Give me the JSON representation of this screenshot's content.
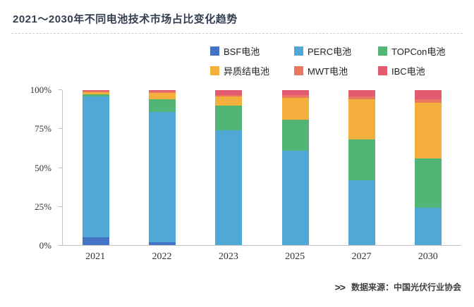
{
  "title": "2021～2030年不同电池技术市场占比变化趋势",
  "footer": {
    "marker": ">>",
    "text": "数据来源：中国光伏行业协会"
  },
  "chart_data": {
    "type": "bar",
    "stacked": true,
    "title": "2021～2030年不同电池技术市场占比变化趋势",
    "categories": [
      "2021",
      "2022",
      "2023",
      "2025",
      "2027",
      "2030"
    ],
    "series": [
      {
        "name": "BSF电池",
        "color": "#4472C4",
        "values": [
          5,
          2,
          0,
          0,
          0,
          0
        ]
      },
      {
        "name": "PERC电池",
        "color": "#4FA8D5",
        "values": [
          91,
          84,
          74,
          61,
          42,
          24
        ]
      },
      {
        "name": "TOPCon电池",
        "color": "#53B575",
        "values": [
          1.5,
          8,
          16,
          20,
          26,
          32
        ]
      },
      {
        "name": "异质结电池",
        "color": "#F5AF3D",
        "values": [
          1,
          4,
          6,
          14,
          26,
          36
        ]
      },
      {
        "name": "MWT电池",
        "color": "#E97862",
        "values": [
          1,
          1,
          1,
          2,
          2,
          2
        ]
      },
      {
        "name": "IBC电池",
        "color": "#E25B70",
        "values": [
          0.5,
          1,
          3,
          3,
          4,
          6
        ]
      }
    ],
    "xlabel": "",
    "ylabel": "",
    "ylim": [
      0,
      100
    ],
    "yticks": [
      "0%",
      "25%",
      "50%",
      "75%",
      "100%"
    ],
    "legend_position": "top-right",
    "legend_rows": 2,
    "grid": false
  }
}
